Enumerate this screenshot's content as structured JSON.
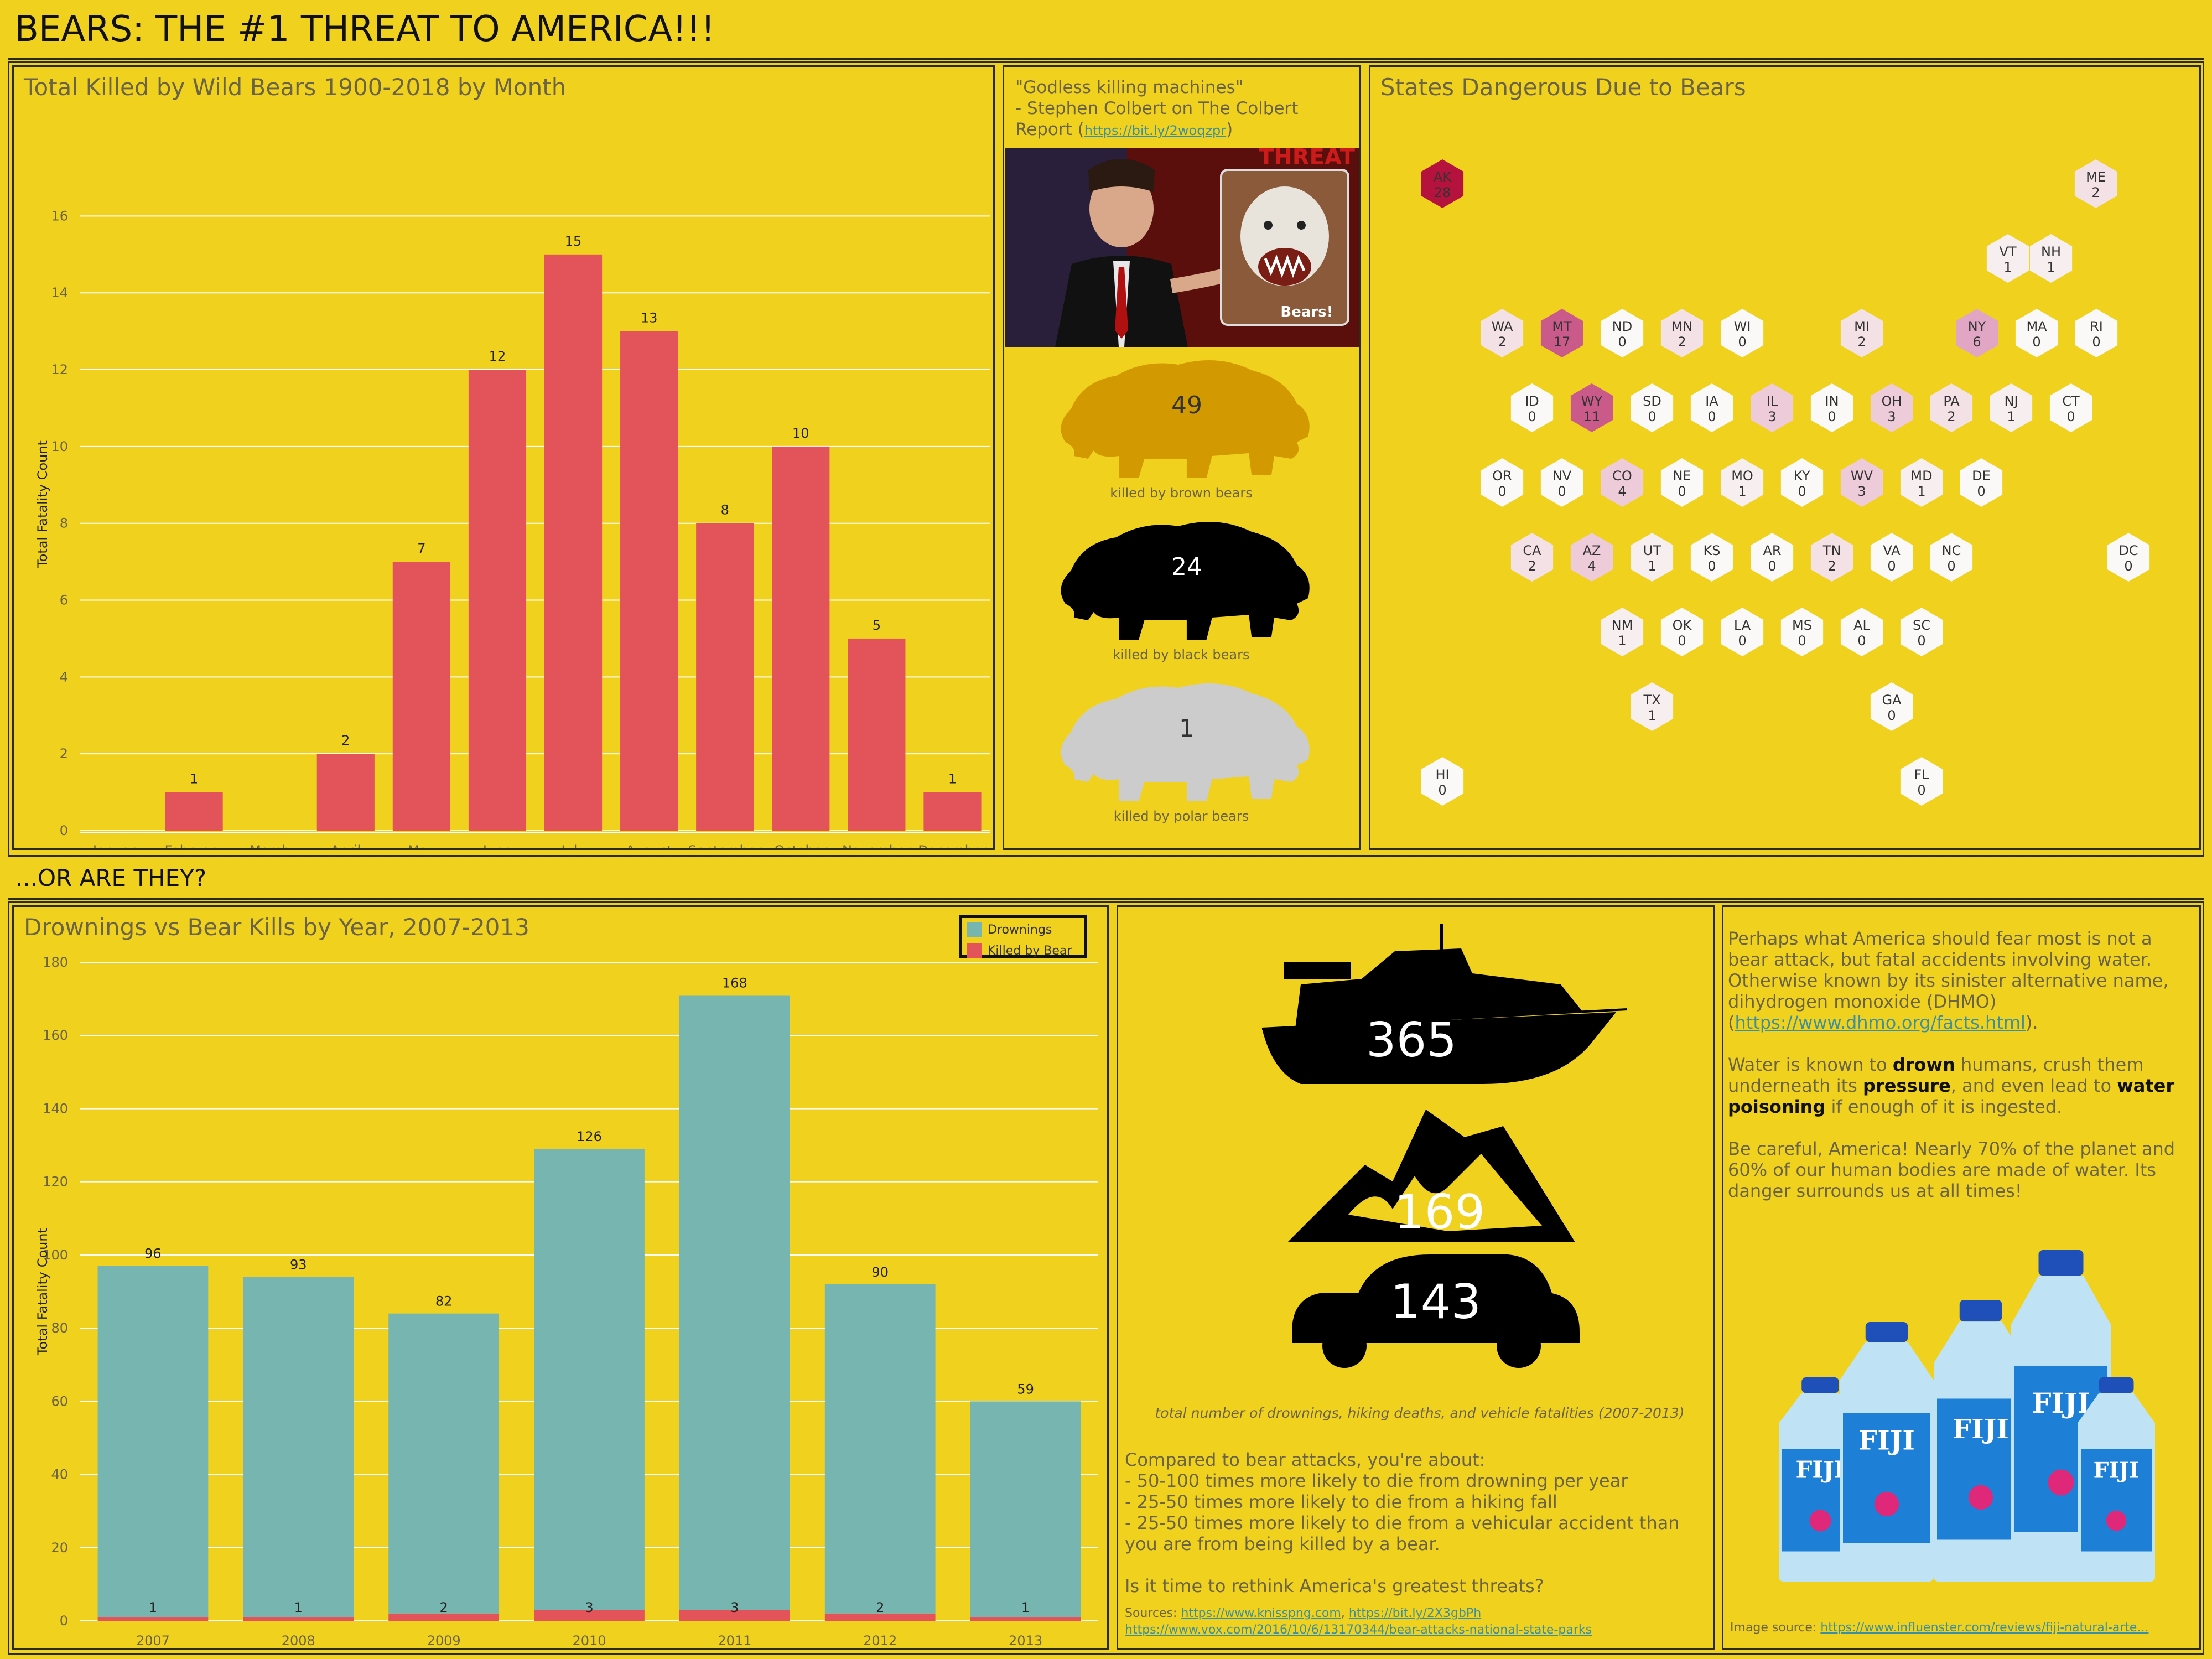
{
  "header": {
    "title": "BEARS: THE #1 THREAT TO AMERICA!!!",
    "subtitle": "...OR ARE THEY?"
  },
  "colors": {
    "background": "#f0d21e",
    "bear_red": "#e3545a",
    "drown_teal": "#77b5b0",
    "brown_bear": "#d39a00",
    "black_bear": "#000000",
    "polar_bear": "#cccccc"
  },
  "monthly_panel": {
    "title": "Total Killed by Wild Bears 1900-2018 by Month"
  },
  "yearly_panel": {
    "title": "Drownings vs Bear Kills by Year, 2007-2013"
  },
  "chart_data": [
    {
      "type": "bar",
      "title": "Total Killed by Wild Bears 1900-2018 by Month",
      "ylabel": "Total Fatality Count",
      "xlabel": "",
      "categories": [
        "January",
        "February",
        "March",
        "April",
        "May",
        "June",
        "July",
        "August",
        "September",
        "October",
        "November",
        "December"
      ],
      "values": [
        0,
        1,
        0,
        2,
        7,
        12,
        15,
        13,
        8,
        10,
        5,
        1
      ],
      "data_labels": [
        "",
        "1",
        "",
        "2",
        "7",
        "12",
        "15",
        "13",
        "8",
        "10",
        "5",
        "1"
      ],
      "ylim": [
        0,
        17
      ],
      "yticks": [
        0,
        2,
        4,
        6,
        8,
        10,
        12,
        14,
        16
      ],
      "grid": true,
      "color": "#e3545a"
    },
    {
      "type": "bar",
      "stacked": true,
      "title": "Drownings vs Bear Kills by Year, 2007-2013",
      "ylabel": "Total Fatality Count",
      "xlabel": "",
      "categories": [
        "2007",
        "2008",
        "2009",
        "2010",
        "2011",
        "2012",
        "2013"
      ],
      "series": [
        {
          "name": "Drownings",
          "values": [
            96,
            93,
            82,
            126,
            168,
            90,
            59
          ],
          "color": "#77b5b0"
        },
        {
          "name": "Killed by Bear",
          "values": [
            1,
            1,
            2,
            3,
            3,
            2,
            1
          ],
          "color": "#e3545a"
        }
      ],
      "ylim": [
        0,
        180
      ],
      "yticks": [
        0,
        20,
        40,
        60,
        80,
        100,
        120,
        140,
        160,
        180
      ],
      "grid": true,
      "legend_position": "top-right"
    }
  ],
  "colbert": {
    "quote_line1": "\"Godless killing machines\"",
    "quote_line2": "- Stephen Colbert on The Colbert",
    "quote_line3_prefix": "Report (",
    "quote_link": "https://bit.ly/2woqzpr",
    "quote_line3_suffix": ")",
    "image_caption": "Bears!",
    "image_banner": "THREAT"
  },
  "bear_types": [
    {
      "count": "49",
      "caption": "killed by brown bears",
      "color": "#d39a00",
      "text_color": "#333333"
    },
    {
      "count": "24",
      "caption": "killed by black bears",
      "color": "#000000",
      "text_color": "#ffffff"
    },
    {
      "count": "1",
      "caption": "killed by polar bears",
      "color": "#cccccc",
      "text_color": "#333333"
    }
  ],
  "states_panel": {
    "title": "States Dangerous Due to Bears",
    "states": [
      {
        "code": "AK",
        "count": "28"
      },
      {
        "code": "ME",
        "count": "2"
      },
      {
        "code": "VT",
        "count": "1"
      },
      {
        "code": "NH",
        "count": "1"
      },
      {
        "code": "WA",
        "count": "2"
      },
      {
        "code": "MT",
        "count": "17"
      },
      {
        "code": "ND",
        "count": "0"
      },
      {
        "code": "MN",
        "count": "2"
      },
      {
        "code": "WI",
        "count": "0"
      },
      {
        "code": "MI",
        "count": "2"
      },
      {
        "code": "NY",
        "count": "6"
      },
      {
        "code": "MA",
        "count": "0"
      },
      {
        "code": "RI",
        "count": "0"
      },
      {
        "code": "ID",
        "count": "0"
      },
      {
        "code": "WY",
        "count": "11"
      },
      {
        "code": "SD",
        "count": "0"
      },
      {
        "code": "IA",
        "count": "0"
      },
      {
        "code": "IL",
        "count": "3"
      },
      {
        "code": "IN",
        "count": "0"
      },
      {
        "code": "OH",
        "count": "3"
      },
      {
        "code": "PA",
        "count": "2"
      },
      {
        "code": "NJ",
        "count": "1"
      },
      {
        "code": "CT",
        "count": "0"
      },
      {
        "code": "OR",
        "count": "0"
      },
      {
        "code": "NV",
        "count": "0"
      },
      {
        "code": "CO",
        "count": "4"
      },
      {
        "code": "NE",
        "count": "0"
      },
      {
        "code": "MO",
        "count": "1"
      },
      {
        "code": "KY",
        "count": "0"
      },
      {
        "code": "WV",
        "count": "3"
      },
      {
        "code": "MD",
        "count": "1"
      },
      {
        "code": "DE",
        "count": "0"
      },
      {
        "code": "CA",
        "count": "2"
      },
      {
        "code": "AZ",
        "count": "4"
      },
      {
        "code": "UT",
        "count": "1"
      },
      {
        "code": "KS",
        "count": "0"
      },
      {
        "code": "AR",
        "count": "0"
      },
      {
        "code": "TN",
        "count": "2"
      },
      {
        "code": "VA",
        "count": "0"
      },
      {
        "code": "NC",
        "count": "0"
      },
      {
        "code": "DC",
        "count": "0"
      },
      {
        "code": "NM",
        "count": "1"
      },
      {
        "code": "OK",
        "count": "0"
      },
      {
        "code": "LA",
        "count": "0"
      },
      {
        "code": "MS",
        "count": "0"
      },
      {
        "code": "AL",
        "count": "0"
      },
      {
        "code": "SC",
        "count": "0"
      },
      {
        "code": "TX",
        "count": "1"
      },
      {
        "code": "GA",
        "count": "0"
      },
      {
        "code": "HI",
        "count": "0"
      },
      {
        "code": "FL",
        "count": "0"
      }
    ]
  },
  "threats_panel": {
    "boat_count": "365",
    "mountain_count": "169",
    "car_count": "143",
    "caption": "total number of drownings, hiking deaths, and vehicle fatalities  (2007-2013)",
    "compare_intro": "Compared to bear attacks, you're about:",
    "compare_items": [
      "- 50-100 times more likely to die from drowning per year",
      "- 25-50 times more likely to die from a hiking fall",
      "- 25-50 times more likely to die from a vehicular accident than",
      "you are from being killed by a bear."
    ],
    "question": "Is it time to rethink America's greatest threats?",
    "sources_label": "Sources: ",
    "source_link1": "https://www.knisspng.com",
    "source_sep": ", ",
    "source_link2": "https://bit.ly/2X3gbPh",
    "source_link3": "https://www.vox.com/2016/10/6/13170344/bear-attacks-national-state-parks"
  },
  "water_panel": {
    "p1_text": "Perhaps what America should fear most is not a bear attack, but fatal accidents involving water. Otherwise known by its sinister alternative name, dihydrogen monoxide (DHMO)",
    "p1_link_prefix": "(",
    "p1_link": "https://www.dhmo.org/facts.html",
    "p1_link_suffix": ").",
    "p2_a": "Water is known to ",
    "p2_b": "drown",
    "p2_c": " humans, crush them underneath its ",
    "p2_d": "pressure",
    "p2_e": ", and even lead to ",
    "p2_f": "water poisoning",
    "p2_g": " if enough of it is ingested.",
    "p3_text": "Be careful, America! Nearly 70% of the planet and 60% of our human bodies are made of water. Its danger surrounds us at all times!",
    "bottle_brand": "FIJI",
    "image_source_label": "Image source: ",
    "image_source_link": "https://www.influenster.com/reviews/fiji-natural-arte..."
  }
}
